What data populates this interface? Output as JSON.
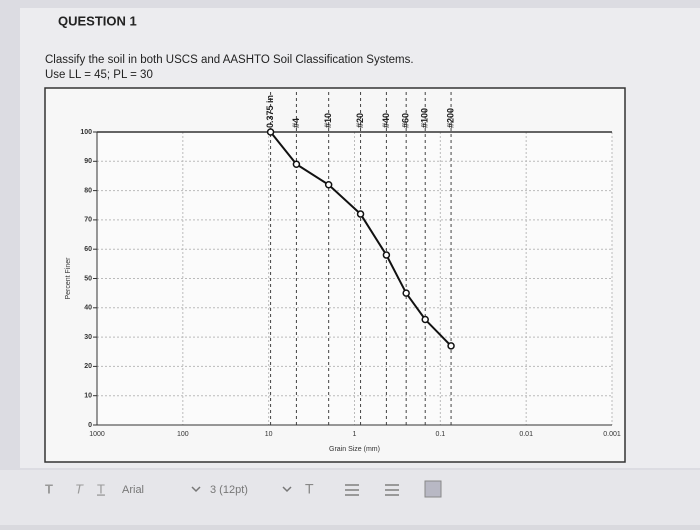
{
  "question": {
    "heading": "QUESTION 1",
    "text": "Classify the soil in both USCS and AASHTO Soil Classification Systems.",
    "given": "Use LL = 45;  PL = 30"
  },
  "chart_data": {
    "type": "line",
    "xscale": "log",
    "grid": true,
    "x_label": "Grain Size (mm)",
    "y_label": "Percent Finer",
    "x": [
      9.5,
      4.75,
      2.0,
      0.85,
      0.425,
      0.25,
      0.15,
      0.075
    ],
    "sieve_labels": [
      "0.375 in",
      "#4",
      "#10",
      "#20",
      "#40",
      "#60",
      "#100",
      "#200"
    ],
    "series": [
      {
        "color": "#111111",
        "values": [
          100,
          89,
          82,
          72,
          58,
          45,
          36,
          27
        ]
      }
    ],
    "xlim": [
      1000,
      0.001
    ],
    "xticks": [
      1000,
      100,
      10,
      1,
      0.1,
      0.01,
      0.001
    ],
    "ylim": [
      0,
      100
    ],
    "yticks": [
      0,
      10,
      20,
      30,
      40,
      50,
      60,
      70,
      80,
      90,
      100
    ]
  },
  "toolbar": {
    "styles": [
      "T",
      "T",
      "T"
    ],
    "font": "Arial",
    "size": "3 (12pt)",
    "color": "T"
  }
}
